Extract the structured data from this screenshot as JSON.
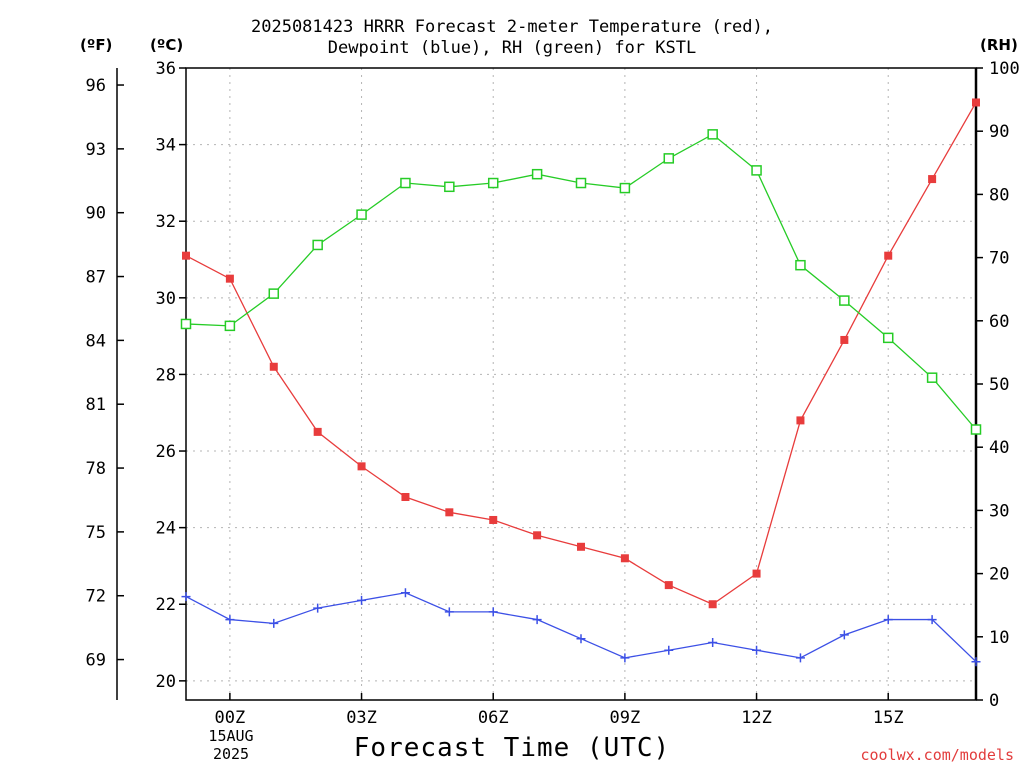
{
  "title_line1": "2025081423 HRRR Forecast 2-meter Temperature (red),",
  "title_line2": "Dewpoint (blue), RH (green) for KSTL",
  "unit_f": "(ºF)",
  "unit_c": "(ºC)",
  "unit_rh": "(RH)",
  "xlabel": "Forecast Time (UTC)",
  "watermark": "coolwx.com/models",
  "date_line1": "15AUG",
  "date_line2": "2025",
  "colors": {
    "temperature": "#e83c3c",
    "dewpoint": "#3c50e6",
    "rh": "#26cc26",
    "grid": "#b4b4b4"
  },
  "chart_data": {
    "type": "line",
    "x_hours": [
      -1,
      0,
      1,
      2,
      3,
      4,
      5,
      6,
      7,
      8,
      9,
      10,
      11,
      12,
      13,
      14,
      15,
      16,
      17
    ],
    "x_ticks": [
      "00Z",
      "03Z",
      "06Z",
      "09Z",
      "12Z",
      "15Z"
    ],
    "x_tick_hours": [
      0,
      3,
      6,
      9,
      12,
      15
    ],
    "xlim": [
      -1,
      17
    ],
    "y_left_c": {
      "ylim": [
        19.5,
        36
      ],
      "ticks": [
        "20",
        "22",
        "24",
        "26",
        "28",
        "30",
        "32",
        "34",
        "36"
      ]
    },
    "y_left_f": {
      "ticks": [
        "69",
        "72",
        "75",
        "78",
        "81",
        "84",
        "87",
        "90",
        "93",
        "96"
      ]
    },
    "y_right_rh": {
      "ylim": [
        0,
        100
      ],
      "ticks": [
        "0",
        "10",
        "20",
        "30",
        "40",
        "50",
        "60",
        "70",
        "80",
        "90",
        "100"
      ]
    },
    "grid": true,
    "series": [
      {
        "axis": "celsius",
        "marker": "filled-square",
        "values": [
          31.1,
          30.5,
          28.2,
          26.5,
          25.6,
          24.8,
          24.4,
          24.2,
          23.8,
          23.5,
          23.2,
          22.5,
          22.0,
          22.8,
          26.8,
          28.9,
          31.1,
          33.1,
          35.1
        ]
      },
      {
        "axis": "celsius",
        "marker": "plus",
        "values": [
          22.2,
          21.6,
          21.5,
          21.9,
          22.1,
          22.3,
          21.8,
          21.8,
          21.6,
          21.1,
          20.6,
          20.8,
          21.0,
          20.8,
          20.6,
          21.2,
          21.6,
          21.6,
          20.5
        ]
      },
      {
        "axis": "rh",
        "marker": "open-square",
        "values": [
          59.5,
          59.2,
          64.3,
          72.0,
          76.8,
          81.8,
          81.2,
          81.8,
          83.2,
          81.8,
          81.0,
          85.7,
          89.5,
          83.8,
          68.8,
          63.2,
          57.3,
          51.0,
          42.8
        ]
      }
    ]
  }
}
